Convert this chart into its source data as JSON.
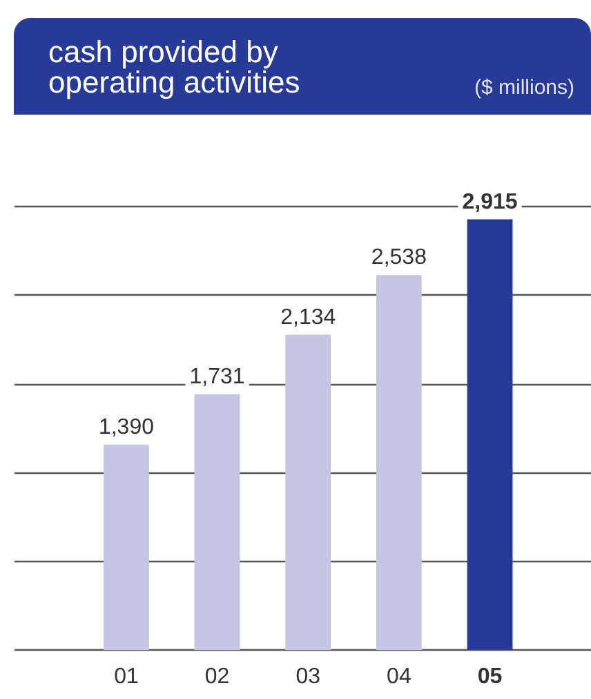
{
  "chart_data": {
    "type": "bar",
    "title": "cash provided by\noperating activities",
    "subtitle": "($ millions)",
    "categories": [
      "01",
      "02",
      "03",
      "04",
      "05"
    ],
    "values": [
      1390,
      1731,
      2134,
      2538,
      2915
    ],
    "value_labels": [
      "1,390",
      "1,731",
      "2,134",
      "2,538",
      "2,915"
    ],
    "colors": [
      "#c6c6e4",
      "#c6c6e4",
      "#c6c6e4",
      "#c6c6e4",
      "#283a97"
    ],
    "grid": "y",
    "tick_labels": false
  }
}
